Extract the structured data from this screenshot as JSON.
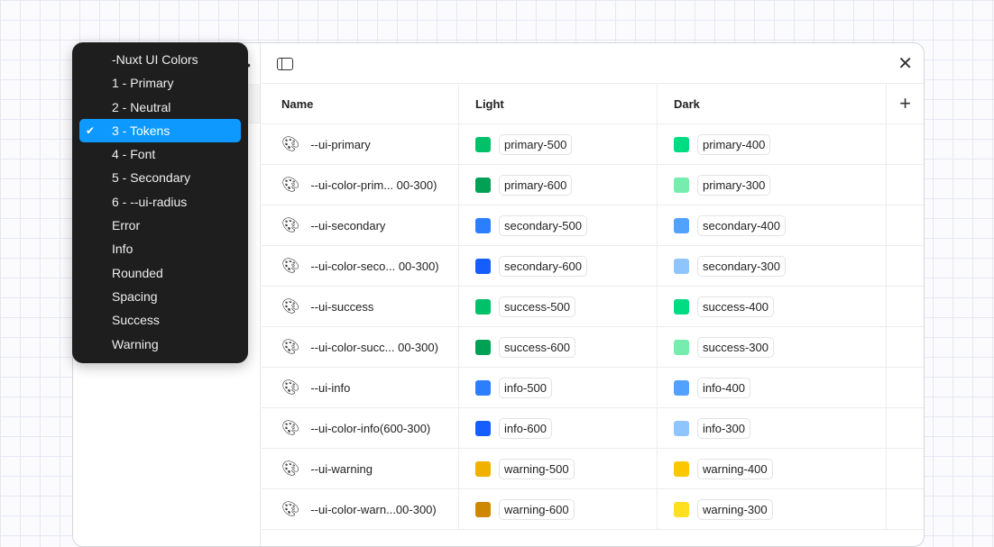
{
  "menu": {
    "selected_index": 3,
    "items": [
      "-Nuxt UI Colors",
      "1 - Primary",
      "2 - Neutral",
      "3 - Tokens",
      "4 - Font",
      "5 - Secondary",
      "6 - --ui-radius",
      "Error",
      "Info",
      "Rounded",
      "Spacing",
      "Success",
      "Warning"
    ]
  },
  "table": {
    "headers": {
      "name": "Name",
      "light": "Light",
      "dark": "Dark",
      "add": "+"
    },
    "rows": [
      {
        "name": "--ui-primary",
        "light": "primary-500",
        "light_color": "#00c16a",
        "dark": "primary-400",
        "dark_color": "#00dc82"
      },
      {
        "name": "--ui-color-prim... 00-300)",
        "light": "primary-600",
        "light_color": "#00a155",
        "dark": "primary-300",
        "dark_color": "#75edae"
      },
      {
        "name": "--ui-secondary",
        "light": "secondary-500",
        "light_color": "#2b7fff",
        "dark": "secondary-400",
        "dark_color": "#51a2ff"
      },
      {
        "name": "--ui-color-seco... 00-300)",
        "light": "secondary-600",
        "light_color": "#155dfc",
        "dark": "secondary-300",
        "dark_color": "#8ec5ff"
      },
      {
        "name": "--ui-success",
        "light": "success-500",
        "light_color": "#00c16a",
        "dark": "success-400",
        "dark_color": "#00dc82"
      },
      {
        "name": "--ui-color-succ... 00-300)",
        "light": "success-600",
        "light_color": "#00a155",
        "dark": "success-300",
        "dark_color": "#75edae"
      },
      {
        "name": "--ui-info",
        "light": "info-500",
        "light_color": "#2b7fff",
        "dark": "info-400",
        "dark_color": "#51a2ff"
      },
      {
        "name": "--ui-color-info(600-300)",
        "light": "info-600",
        "light_color": "#155dfc",
        "dark": "info-300",
        "dark_color": "#8ec5ff"
      },
      {
        "name": "--ui-warning",
        "light": "warning-500",
        "light_color": "#f0b100",
        "dark": "warning-400",
        "dark_color": "#fdc700"
      },
      {
        "name": "--ui-color-warn...00-300)",
        "light": "warning-600",
        "light_color": "#d08700",
        "dark": "warning-300",
        "dark_color": "#ffdf20"
      }
    ]
  },
  "icons": {
    "row_icon": "palette-icon",
    "close": "close-icon",
    "sidebar_toggle": "sidebar-toggle-icon",
    "check": "check-icon"
  },
  "colors": {
    "selection": "#0d99ff",
    "menu_bg": "#1e1e1e"
  }
}
